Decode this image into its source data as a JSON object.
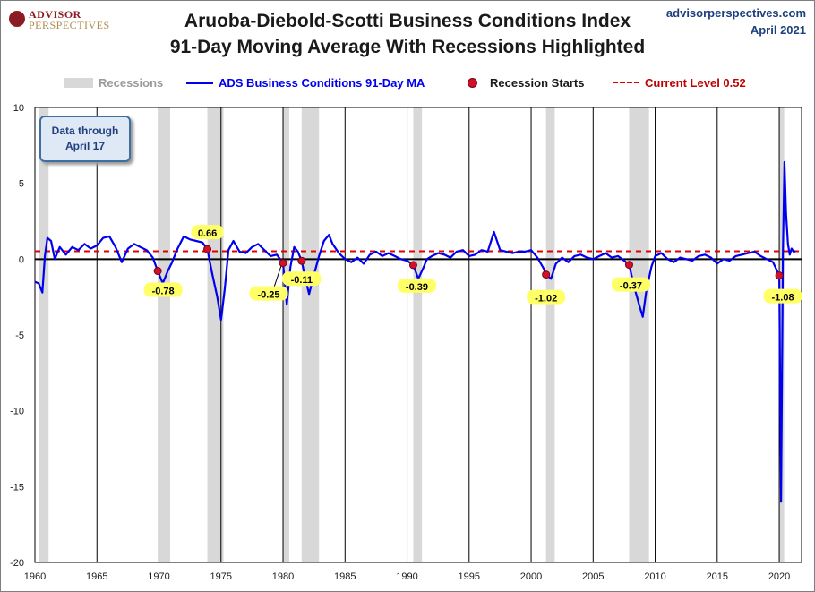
{
  "header": {
    "brand_line1": "ADVISOR",
    "brand_line2": "PERSPECTIVES",
    "title_line1": "Aruoba-Diebold-Scotti Business Conditions Index",
    "title_line2": "91-Day Moving Average With Recessions Highlighted",
    "site": "advisorperspectives.com",
    "date": "April 2021"
  },
  "legend": {
    "recessions": "Recessions",
    "series": "ADS Business Conditions 91-Day MA",
    "starts": "Recession Starts",
    "current": "Current Level 0.52"
  },
  "note": {
    "line1": "Data through",
    "line2": "April 17"
  },
  "colors": {
    "line": "#0000ee",
    "recession": "#d8d8d8",
    "marker": "#d0112b",
    "current": "#e00000",
    "callout": "#ffff66"
  },
  "chart_data": {
    "type": "line",
    "xlabel": "",
    "ylabel": "",
    "xlim": [
      1960,
      2021.8
    ],
    "ylim": [
      -20,
      10
    ],
    "x_ticks": [
      1960,
      1965,
      1970,
      1975,
      1980,
      1985,
      1990,
      1995,
      2000,
      2005,
      2010,
      2015,
      2020
    ],
    "x_tick_labels": [
      "1960",
      "1965",
      "1970",
      "1975",
      "1980",
      "1985",
      "1990",
      "1995",
      "2000",
      "2005",
      "2010",
      "2015",
      "2020"
    ],
    "y_ticks": [
      10,
      5,
      0,
      -5,
      -10,
      -15,
      -20
    ],
    "y_tick_labels": [
      "10",
      "5",
      "0",
      "-5",
      "-10",
      "-15",
      "-20"
    ],
    "current_level": 0.52,
    "recessions": [
      [
        1960.3,
        1961.1
      ],
      [
        1969.9,
        1970.9
      ],
      [
        1973.9,
        1975.2
      ],
      [
        1980.0,
        1980.5
      ],
      [
        1981.5,
        1982.9
      ],
      [
        1990.5,
        1991.2
      ],
      [
        2001.2,
        2001.9
      ],
      [
        2007.9,
        2009.5
      ],
      [
        2020.0,
        2020.4
      ]
    ],
    "recession_starts": [
      {
        "x": 1969.9,
        "y": -0.78,
        "label": "-0.78"
      },
      {
        "x": 1973.9,
        "y": 0.66,
        "label": "0.66"
      },
      {
        "x": 1980.0,
        "y": -0.25,
        "label": "-0.25"
      },
      {
        "x": 1981.5,
        "y": -0.11,
        "label": "-0.11"
      },
      {
        "x": 1990.5,
        "y": -0.39,
        "label": "-0.39"
      },
      {
        "x": 2001.2,
        "y": -1.02,
        "label": "-1.02"
      },
      {
        "x": 2007.9,
        "y": -0.37,
        "label": "-0.37"
      },
      {
        "x": 2020.0,
        "y": -1.08,
        "label": "-1.08"
      }
    ],
    "series": [
      {
        "name": "ADS Business Conditions 91-Day MA",
        "x": [
          1960.0,
          1960.3,
          1960.6,
          1960.8,
          1961.0,
          1961.3,
          1961.6,
          1962.0,
          1962.5,
          1963.0,
          1963.5,
          1964.0,
          1964.5,
          1965.0,
          1965.5,
          1966.0,
          1966.5,
          1967.0,
          1967.5,
          1968.0,
          1968.5,
          1969.0,
          1969.5,
          1969.9,
          1970.3,
          1970.7,
          1971.0,
          1971.5,
          1972.0,
          1972.5,
          1973.0,
          1973.5,
          1973.9,
          1974.3,
          1974.7,
          1975.0,
          1975.3,
          1975.6,
          1976.0,
          1976.5,
          1977.0,
          1977.5,
          1978.0,
          1978.5,
          1979.0,
          1979.5,
          1980.0,
          1980.3,
          1980.6,
          1980.9,
          1981.2,
          1981.5,
          1981.8,
          1982.1,
          1982.5,
          1982.9,
          1983.3,
          1983.7,
          1984.0,
          1984.5,
          1985.0,
          1985.5,
          1986.0,
          1986.5,
          1987.0,
          1987.5,
          1988.0,
          1988.5,
          1989.0,
          1989.5,
          1990.0,
          1990.5,
          1990.9,
          1991.3,
          1991.6,
          1992.0,
          1992.5,
          1993.0,
          1993.5,
          1994.0,
          1994.5,
          1995.0,
          1995.5,
          1996.0,
          1996.5,
          1997.0,
          1997.5,
          1998.0,
          1998.5,
          1999.0,
          1999.5,
          2000.0,
          2000.5,
          2001.0,
          2001.2,
          2001.6,
          2002.0,
          2002.5,
          2003.0,
          2003.5,
          2004.0,
          2004.5,
          2005.0,
          2005.5,
          2006.0,
          2006.5,
          2007.0,
          2007.5,
          2007.9,
          2008.3,
          2008.7,
          2009.0,
          2009.3,
          2009.7,
          2010.0,
          2010.5,
          2011.0,
          2011.5,
          2012.0,
          2012.5,
          2013.0,
          2013.5,
          2014.0,
          2014.5,
          2015.0,
          2015.5,
          2016.0,
          2016.5,
          2017.0,
          2017.5,
          2018.0,
          2018.5,
          2019.0,
          2019.5,
          2020.0,
          2020.15,
          2020.3,
          2020.42,
          2020.55,
          2020.7,
          2020.85,
          2021.0,
          2021.15,
          2021.3
        ],
        "values": [
          -1.5,
          -1.6,
          -2.2,
          0.2,
          1.4,
          1.2,
          0.0,
          0.8,
          0.3,
          0.8,
          0.6,
          1.0,
          0.7,
          0.9,
          1.4,
          1.5,
          0.8,
          -0.2,
          0.7,
          1.0,
          0.8,
          0.6,
          0.1,
          -0.78,
          -1.6,
          -0.8,
          -0.3,
          0.7,
          1.5,
          1.3,
          1.2,
          1.1,
          0.66,
          -1.0,
          -2.5,
          -4.0,
          -2.0,
          0.6,
          1.2,
          0.5,
          0.4,
          0.8,
          1.0,
          0.6,
          0.2,
          0.3,
          -0.25,
          -3.0,
          -0.5,
          0.8,
          0.5,
          -0.11,
          -1.3,
          -2.3,
          -1.0,
          0.2,
          1.2,
          1.6,
          1.0,
          0.4,
          0.0,
          -0.2,
          0.1,
          -0.3,
          0.3,
          0.5,
          0.2,
          0.4,
          0.2,
          0.0,
          -0.1,
          -0.39,
          -1.3,
          -0.6,
          0.0,
          0.2,
          0.4,
          0.3,
          0.1,
          0.5,
          0.6,
          0.2,
          0.3,
          0.6,
          0.5,
          1.8,
          0.6,
          0.5,
          0.4,
          0.5,
          0.5,
          0.6,
          0.1,
          -0.6,
          -1.02,
          -1.3,
          -0.3,
          0.1,
          -0.2,
          0.2,
          0.3,
          0.1,
          0.0,
          0.2,
          0.4,
          0.1,
          0.2,
          -0.1,
          -0.37,
          -1.8,
          -3.0,
          -3.8,
          -2.0,
          -0.5,
          0.2,
          0.4,
          0.0,
          -0.2,
          0.1,
          0.0,
          -0.1,
          0.2,
          0.3,
          0.1,
          -0.3,
          0.0,
          -0.1,
          0.2,
          0.3,
          0.4,
          0.5,
          0.2,
          0.0,
          -0.2,
          -1.08,
          -16.0,
          0.5,
          6.4,
          3.0,
          1.0,
          0.3,
          0.7,
          0.5,
          0.52
        ]
      }
    ]
  }
}
